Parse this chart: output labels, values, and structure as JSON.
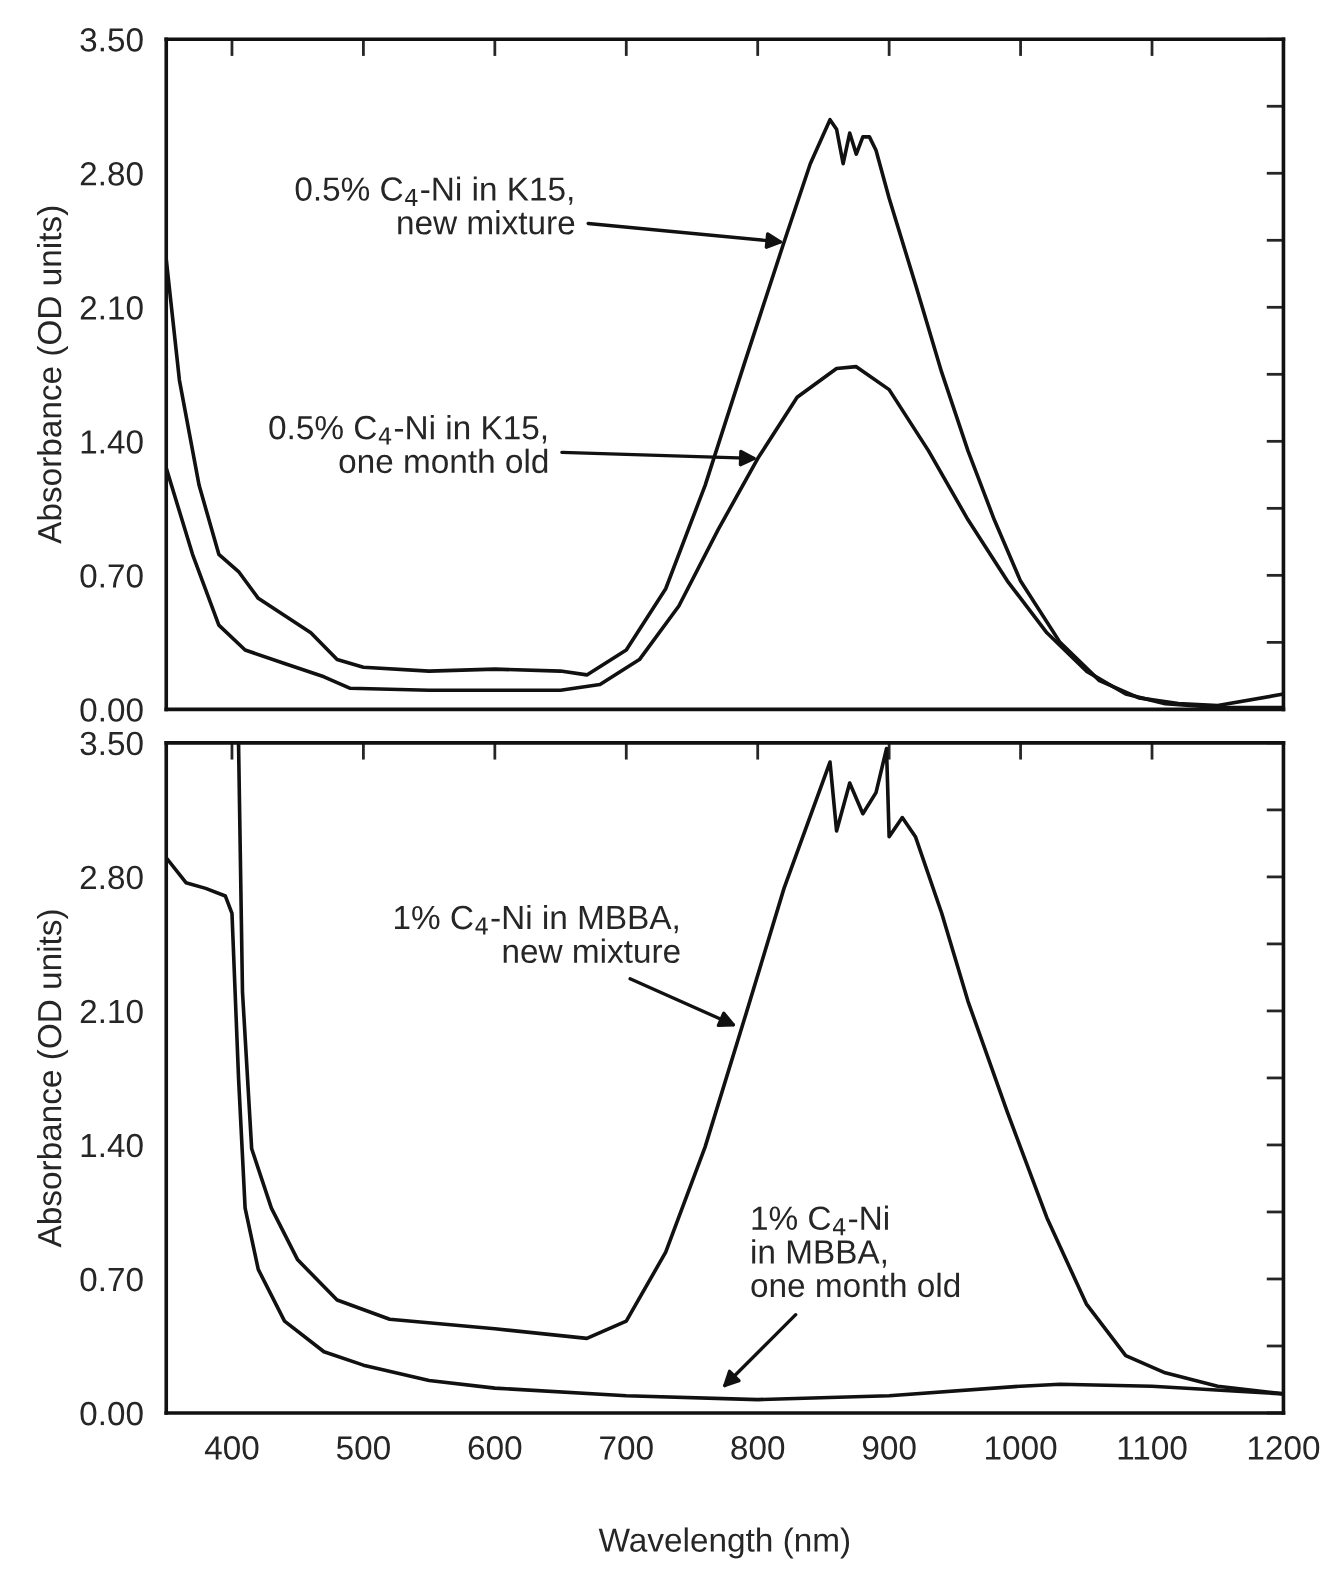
{
  "chart_data": [
    {
      "type": "line",
      "ylabel": "Absorbance (OD units)",
      "xlim": [
        350,
        1200
      ],
      "xticks": [
        400,
        500,
        600,
        700,
        800,
        900,
        1000,
        1100,
        1200
      ],
      "ylim": [
        0,
        3.5
      ],
      "yticks": [
        {
          "value": 0,
          "label": "0.00"
        },
        {
          "value": 0.35,
          "label": null
        },
        {
          "value": 0.7,
          "label": "0.70"
        },
        {
          "value": 1.05,
          "label": null
        },
        {
          "value": 1.4,
          "label": "1.40"
        },
        {
          "value": 1.75,
          "label": null
        },
        {
          "value": 2.1,
          "label": "2.10"
        },
        {
          "value": 2.45,
          "label": null
        },
        {
          "value": 2.8,
          "label": "2.80"
        },
        {
          "value": 3.15,
          "label": null
        },
        {
          "value": 3.5,
          "label": "3.50"
        }
      ],
      "tick_labels": "y",
      "grid": false,
      "legend": false,
      "series": [
        {
          "color": "#111111",
          "x": [
            350,
            360,
            375,
            390,
            405,
            420,
            440,
            460,
            480,
            500,
            550,
            600,
            650,
            670,
            700,
            730,
            760,
            790,
            820,
            840,
            855,
            860,
            865,
            870,
            875,
            880,
            885,
            890,
            900,
            920,
            940,
            960,
            980,
            1000,
            1030,
            1060,
            1090,
            1120,
            1150,
            1200
          ],
          "values": [
            2.35,
            1.72,
            1.17,
            0.81,
            0.72,
            0.58,
            0.49,
            0.4,
            0.26,
            0.22,
            0.2,
            0.21,
            0.2,
            0.18,
            0.31,
            0.63,
            1.17,
            1.81,
            2.44,
            2.85,
            3.08,
            3.03,
            2.85,
            3.01,
            2.9,
            2.99,
            2.99,
            2.92,
            2.67,
            2.22,
            1.76,
            1.35,
            0.99,
            0.67,
            0.35,
            0.15,
            0.06,
            0.03,
            0.02,
            0.08
          ]
        },
        {
          "color": "#111111",
          "x": [
            350,
            370,
            390,
            410,
            440,
            470,
            490,
            550,
            650,
            680,
            710,
            740,
            770,
            800,
            830,
            860,
            875,
            900,
            930,
            960,
            990,
            1020,
            1050,
            1080,
            1110,
            1150,
            1200
          ],
          "values": [
            1.26,
            0.81,
            0.44,
            0.31,
            0.24,
            0.17,
            0.11,
            0.1,
            0.1,
            0.13,
            0.26,
            0.54,
            0.94,
            1.31,
            1.63,
            1.78,
            1.79,
            1.67,
            1.35,
            0.99,
            0.67,
            0.4,
            0.2,
            0.08,
            0.03,
            0.01,
            0.01
          ]
        }
      ],
      "annotations": [
        {
          "text": "0.5% C$_{4}$-Ni in K15,\nnew mixture",
          "x": 820,
          "y": 2.44
        },
        {
          "text": "0.5% C$_{4}$-Ni in K15,\none month old",
          "x": 800,
          "y": 1.31
        }
      ]
    },
    {
      "type": "line",
      "xlabel": "Wavelength (nm)",
      "ylabel": "Absorbance (OD units)",
      "xlim": [
        350,
        1200
      ],
      "xticks": [
        400,
        500,
        600,
        700,
        800,
        900,
        1000,
        1100,
        1200
      ],
      "ylim": [
        0,
        3.5
      ],
      "yticks": [
        {
          "value": 0,
          "label": "0.00"
        },
        {
          "value": 0.35,
          "label": null
        },
        {
          "value": 0.7,
          "label": "0.70"
        },
        {
          "value": 1.05,
          "label": null
        },
        {
          "value": 1.4,
          "label": "1.40"
        },
        {
          "value": 1.75,
          "label": null
        },
        {
          "value": 2.1,
          "label": "2.10"
        },
        {
          "value": 2.45,
          "label": null
        },
        {
          "value": 2.8,
          "label": "2.80"
        },
        {
          "value": 3.15,
          "label": null
        },
        {
          "value": 3.5,
          "label": "3.50"
        }
      ],
      "grid": false,
      "legend": false,
      "series": [
        {
          "color": "#111111",
          "x": [
            405,
            408,
            415,
            430,
            450,
            480,
            520,
            600,
            670,
            700,
            730,
            760,
            790,
            820,
            855,
            860,
            870,
            880,
            890,
            898,
            900,
            910,
            920,
            940,
            960,
            990,
            1020,
            1050,
            1080,
            1110,
            1150,
            1200
          ],
          "values": [
            3.5,
            2.2,
            1.38,
            1.07,
            0.8,
            0.59,
            0.49,
            0.44,
            0.39,
            0.48,
            0.84,
            1.39,
            2.06,
            2.74,
            3.4,
            3.04,
            3.29,
            3.13,
            3.24,
            3.47,
            3.01,
            3.11,
            3.01,
            2.61,
            2.15,
            1.57,
            1.02,
            0.57,
            0.3,
            0.21,
            0.14,
            0.1
          ]
        },
        {
          "color": "#111111",
          "x": [
            350,
            365,
            380,
            395,
            400,
            405,
            410,
            420,
            440,
            470,
            500,
            550,
            600,
            700,
            800,
            900,
            1000,
            1030,
            1100,
            1200
          ],
          "values": [
            2.9,
            2.77,
            2.74,
            2.7,
            2.61,
            1.75,
            1.07,
            0.75,
            0.48,
            0.32,
            0.25,
            0.17,
            0.13,
            0.09,
            0.07,
            0.09,
            0.14,
            0.15,
            0.14,
            0.1
          ]
        }
      ],
      "annotations": [
        {
          "text": "1% C$_{4}$-Ni in MBBA,\nnew mixture",
          "x": 784,
          "y": 2.02
        },
        {
          "text": "1% C$_{4}$-Ni\nin MBBA,\none month old",
          "x": 773,
          "y": 0.13
        }
      ]
    }
  ]
}
